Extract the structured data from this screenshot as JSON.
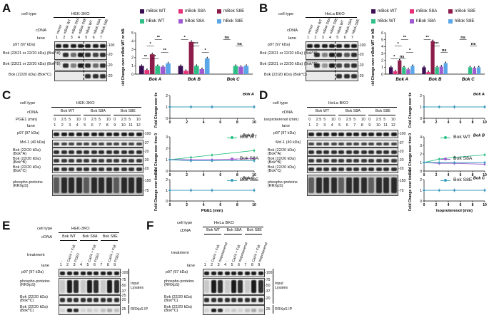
{
  "panels": {
    "A": {
      "letter": "A",
      "cell_type_label": "cell type",
      "cell_type": "HEK-3KO",
      "cdna_label": "cDNA",
      "lane_label": "lane",
      "lanes": [
        "1",
        "2",
        "3",
        "4",
        "5",
        "6",
        "7"
      ],
      "cdna": [
        "vector",
        "mBok WT",
        "mBok S8A",
        "mBok S8E",
        "hBok WT",
        "hBok S8A",
        "hBok S8E"
      ],
      "rows": [
        "p97 (97 kDa)",
        "Bok (23/21 or 22/20 kDa) (Bok^A)",
        "Bok (23/21 or 22/20 kDa) (Bok^B)",
        "Bok (22/20 kDa) (Bok^C)"
      ],
      "mw": [
        "-100",
        "-20",
        "-20",
        "-20"
      ]
    },
    "B": {
      "letter": "B",
      "cell_type_label": "cell type",
      "cell_type": "HeLa BKO",
      "cdna_label": "cDNA",
      "lane_label": "lane",
      "lanes": [
        "1",
        "2",
        "3",
        "4",
        "5",
        "6",
        "7"
      ],
      "cdna": [
        "vector",
        "mBok WT",
        "mBok S8A",
        "mBok S8E",
        "hBok WT",
        "hBok S8A",
        "hBok S8E"
      ],
      "rows": [
        "p97 (97 kDa)",
        "Bok (23/21 or 22/20 kDa) (Bok^A)",
        "Bok (23/21 or 22/20 kDa) (Bok^B)",
        "Bok (22/20 kDa) (Bok^C)"
      ],
      "mw": [
        "-100",
        "-20",
        "-20",
        "-20"
      ]
    },
    "C": {
      "letter": "C",
      "cell_type_label": "cell type",
      "cell_type": "HEK-3KO",
      "cdna_label": "cDNA",
      "groups": [
        "Bok WT",
        "Bok S8A",
        "Bok S8E"
      ],
      "treatment_label": "PGE1 (min)",
      "times": [
        "0",
        "2.5",
        "5",
        "10",
        "0",
        "2.5",
        "5",
        "10",
        "0",
        "2.5",
        "5",
        "10"
      ],
      "lane_label": "lane",
      "lanes": [
        "1",
        "2",
        "3",
        "4",
        "5",
        "6",
        "7",
        "8",
        "9",
        "10",
        "11",
        "12"
      ],
      "rows": [
        "p97 (97 kDa)",
        "Mcl-1 (40 kDa)",
        "Bok (22/20 kDa) (Bok^A)",
        "Bok (22/20 kDa) (Bok^B)",
        "Bok (22/20 kDa) (Bok^C)",
        "phospho-proteins (RRXpS)"
      ],
      "mw": [
        "-100",
        "-37",
        "-20",
        "-20",
        "-20",
        "-150",
        "-75"
      ]
    },
    "D": {
      "letter": "D",
      "cell_type_label": "cell type",
      "cell_type": "HeLa BKO",
      "cdna_label": "cDNA",
      "groups": [
        "Bok WT",
        "Bok S8A",
        "Bok S8E"
      ],
      "treatment_label": "isoproterenol (min)",
      "times": [
        "0",
        "2.5",
        "5",
        "10",
        "0",
        "2.5",
        "5",
        "10",
        "0",
        "2.5",
        "5",
        "10"
      ],
      "lane_label": "lane",
      "lanes": [
        "1",
        "2",
        "3",
        "4",
        "5",
        "6",
        "7",
        "8",
        "9",
        "10",
        "11",
        "12"
      ],
      "rows": [
        "p97 (97 kDa)",
        "Mcl-1 (40 kDa)",
        "Bok (22/20 kDa) (Bok^A)",
        "Bok (22/20 kDa) (Bok^B)",
        "Bok (22/20 kDa) (Bok^C)",
        "phospho-proteins (RRXpS)"
      ],
      "mw": [
        "-100",
        "-37",
        "-20",
        "-20",
        "-20",
        "-150",
        "-75"
      ]
    },
    "E": {
      "letter": "E",
      "cell_type_label": "cell type",
      "cell_type": "HEK-3KO",
      "cdna_label": "cDNA",
      "groups": [
        "Bok WT",
        "Bok S8A",
        "Bok S8E"
      ],
      "treatment_label": "treatment",
      "treatments": [
        "-",
        "CaI/4 + Fsk",
        "PGE1",
        "-",
        "CaI/4 + Fsk",
        "PGE1",
        "-",
        "CaI/4 + Fsk",
        "PGE1"
      ],
      "lane_label": "lane",
      "lanes": [
        "1",
        "2",
        "3",
        "4",
        "5",
        "6",
        "7",
        "8",
        "9"
      ],
      "rows": [
        "p97 (97 kDa)",
        "phospho-proteins (RRXpS)",
        "Bok (22/20 kDa) (Bok^C)",
        "Bok (22/20 kDa) (Bok^C)"
      ],
      "mw": [
        "-100",
        "-75",
        "-50",
        "-37",
        "-25",
        "-20",
        "-25"
      ],
      "side": [
        "Input Lysates",
        "RRXpS IP"
      ]
    },
    "F": {
      "letter": "F",
      "cell_type_label": "cell type",
      "cell_type": "HeLa BKO",
      "cdna_label": "cDNA",
      "groups": [
        "Bok WT",
        "Bok S8A",
        "Bok S8E"
      ],
      "treatment_label": "treatment",
      "treatments": [
        "-",
        "CaI/4 + Fsk",
        "isoproterenol",
        "-",
        "CaI/4 + Fsk",
        "isoproterenol",
        "-",
        "CaI/4 + Fsk",
        "isoproterenol"
      ],
      "lane_label": "lane",
      "lanes": [
        "1",
        "2",
        "3",
        "4",
        "5",
        "6",
        "7",
        "8",
        "9"
      ],
      "rows": [
        "p97 (97 kDa)",
        "phospho-proteins (RRXpS)",
        "Bok (22/20 kDa) (Bok^C)",
        "Bok (22/20 kDa) (Bok^C)"
      ],
      "mw": [
        "-100",
        "-75",
        "-50",
        "-37",
        "-20",
        "-25"
      ],
      "side": [
        "Input Lysates",
        "RRXpS IP"
      ]
    }
  },
  "legend_ab": [
    {
      "label": "mBok WT",
      "color": "#3b0f54"
    },
    {
      "label": "mBok S8A",
      "color": "#e6307a"
    },
    {
      "label": "mBok S8E",
      "color": "#8c1d4a"
    },
    {
      "label": "hBok WT",
      "color": "#2fbf86"
    },
    {
      "label": "hBok S8A",
      "color": "#a05ad0"
    },
    {
      "label": "hBok S8E",
      "color": "#5aa6e6"
    }
  ],
  "legend_cd": [
    {
      "label": "Bok WT",
      "color": "#2fbf86"
    },
    {
      "label": "Bok S8A",
      "color": "#a05ad0"
    },
    {
      "label": "Bok S8E",
      "color": "#3a9fbf"
    }
  ],
  "chart_data": [
    {
      "type": "bar",
      "panel": "A",
      "ylabel": "Fold Change over mBok WT or hBok WT",
      "categories": [
        "Bok A",
        "Bok B",
        "Bok C"
      ],
      "ylim": [
        0,
        5
      ],
      "yticks": [
        0,
        1,
        2,
        3,
        4,
        5
      ],
      "series": [
        {
          "name": "mBok WT",
          "values": [
            1,
            1,
            null
          ]
        },
        {
          "name": "mBok S8A",
          "values": [
            0.5,
            0.4,
            null
          ]
        },
        {
          "name": "mBok S8E",
          "values": [
            2.4,
            3.9,
            null
          ]
        },
        {
          "name": "hBok WT",
          "values": [
            1,
            1,
            1
          ]
        },
        {
          "name": "hBok S8A",
          "values": [
            0.9,
            0.6,
            0.9
          ]
        },
        {
          "name": "hBok S8E",
          "values": [
            1.3,
            1.9,
            1.0
          ]
        }
      ],
      "annotations": [
        "**",
        "*",
        "**",
        "**",
        "*",
        "***",
        "*",
        "*",
        "ns",
        "ns"
      ]
    },
    {
      "type": "bar",
      "panel": "B",
      "ylabel": "Fold Change over mBok WT or hBok WT",
      "categories": [
        "Bok A",
        "Bok B",
        "Bok C"
      ],
      "ylim": [
        0,
        6
      ],
      "yticks": [
        0,
        1,
        2,
        3,
        4,
        5,
        6
      ],
      "series": [
        {
          "name": "mBok WT",
          "values": [
            1,
            1,
            null
          ]
        },
        {
          "name": "mBok S8A",
          "values": [
            0.4,
            0.3,
            null
          ]
        },
        {
          "name": "mBok S8E",
          "values": [
            2.0,
            4.8,
            null
          ]
        },
        {
          "name": "hBok WT",
          "values": [
            1,
            1,
            1
          ]
        },
        {
          "name": "hBok S8A",
          "values": [
            0.7,
            1.1,
            0.9
          ]
        },
        {
          "name": "hBok S8E",
          "values": [
            1.2,
            1.6,
            1.0
          ]
        }
      ],
      "annotations": [
        "**",
        "*",
        "*",
        "*",
        "**",
        "***",
        "ns",
        "ns",
        "ns",
        "ns"
      ]
    },
    {
      "type": "line",
      "panel": "C",
      "subplots": [
        {
          "title": "Bok A",
          "ylabel": "Fold Change over time 0",
          "xlabel": "",
          "ylim": [
            0,
            2
          ],
          "yticks": [
            0,
            1,
            2
          ],
          "x": [
            0,
            2.5,
            5,
            10
          ],
          "series": [
            {
              "name": "Bok WT",
              "values": [
                1,
                1.0,
                1.0,
                1.0
              ]
            },
            {
              "name": "Bok S8A",
              "values": [
                1,
                1.0,
                1.0,
                1.0
              ]
            },
            {
              "name": "Bok S8E",
              "values": [
                1,
                1.0,
                1.0,
                1.0
              ]
            }
          ]
        },
        {
          "title": "Bok B",
          "ylabel": "Fold Change over time 0",
          "xlabel": "",
          "ylim": [
            0,
            3
          ],
          "yticks": [
            0,
            1,
            2,
            3
          ],
          "x": [
            0,
            2.5,
            5,
            10
          ],
          "series": [
            {
              "name": "Bok WT",
              "values": [
                1,
                1.2,
                1.4,
                1.8
              ]
            },
            {
              "name": "Bok S8A",
              "values": [
                1,
                1.0,
                1.0,
                1.1
              ]
            },
            {
              "name": "Bok S8E",
              "values": [
                1,
                0.9,
                0.9,
                0.9
              ]
            }
          ]
        },
        {
          "title": "Bok C",
          "ylabel": "Fold Change over time 0",
          "xlabel": "PGE1 (min)",
          "ylim": [
            0,
            2
          ],
          "yticks": [
            0,
            1,
            2
          ],
          "x": [
            0,
            2.5,
            5,
            10
          ],
          "series": [
            {
              "name": "Bok WT",
              "values": [
                1,
                1.0,
                1.0,
                1.0
              ]
            },
            {
              "name": "Bok S8A",
              "values": [
                1,
                1.0,
                1.0,
                1.0
              ]
            },
            {
              "name": "Bok S8E",
              "values": [
                1,
                1.0,
                1.0,
                1.0
              ]
            }
          ]
        }
      ],
      "xticks": [
        0,
        2,
        4,
        6,
        8,
        10
      ]
    },
    {
      "type": "line",
      "panel": "D",
      "subplots": [
        {
          "title": "Bok A",
          "ylabel": "Fold Change over time 0",
          "xlabel": "",
          "ylim": [
            0,
            2
          ],
          "yticks": [
            0,
            1,
            2
          ],
          "x": [
            0,
            2.5,
            5,
            10
          ],
          "series": [
            {
              "name": "Bok WT",
              "values": [
                1,
                1.0,
                1.0,
                1.0
              ]
            },
            {
              "name": "Bok S8A",
              "values": [
                1,
                1.0,
                1.0,
                1.0
              ]
            },
            {
              "name": "Bok S8E",
              "values": [
                1,
                1.0,
                1.0,
                1.0
              ]
            }
          ]
        },
        {
          "title": "Bok B",
          "ylabel": "Fold Change over time 0",
          "xlabel": "",
          "ylim": [
            0,
            4
          ],
          "yticks": [
            0,
            1,
            2,
            3,
            4
          ],
          "x": [
            0,
            2.5,
            5,
            10
          ],
          "series": [
            {
              "name": "Bok WT",
              "values": [
                1,
                1.4,
                1.6,
                1.9
              ]
            },
            {
              "name": "Bok S8A",
              "values": [
                1,
                0.9,
                0.9,
                0.8
              ]
            },
            {
              "name": "Bok S8E",
              "values": [
                1,
                1.0,
                1.0,
                1.0
              ]
            }
          ]
        },
        {
          "title": "Bok C",
          "ylabel": "Fold Change over time 0",
          "xlabel": "Isoproterenol (min)",
          "ylim": [
            0,
            2
          ],
          "yticks": [
            0,
            1,
            2
          ],
          "x": [
            0,
            2.5,
            5,
            10
          ],
          "series": [
            {
              "name": "Bok WT",
              "values": [
                1,
                1.0,
                1.0,
                1.0
              ]
            },
            {
              "name": "Bok S8A",
              "values": [
                1,
                1.0,
                1.0,
                1.0
              ]
            },
            {
              "name": "Bok S8E",
              "values": [
                1,
                1.0,
                1.0,
                1.0
              ]
            }
          ]
        }
      ],
      "xticks": [
        0,
        2,
        4,
        6,
        8,
        10
      ]
    }
  ]
}
